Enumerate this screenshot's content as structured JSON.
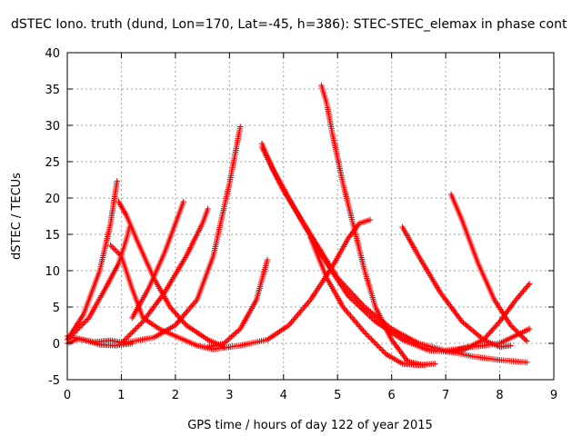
{
  "chart_data": {
    "type": "scatter",
    "title": "dSTEC Iono. truth (dund, Lon=170, Lat=-45, h=386): STEC-STEC_elemax in phase cont",
    "xlabel": "GPS time / hours of day 122 of year 2015",
    "ylabel": "dSTEC  / TECUs",
    "xlim": [
      0,
      9
    ],
    "ylim": [
      -5,
      40
    ],
    "xticks": [
      "0",
      "1",
      "2",
      "3",
      "4",
      "5",
      "6",
      "7",
      "8",
      "9"
    ],
    "yticks": [
      "-5",
      "0",
      "5",
      "10",
      "15",
      "20",
      "25",
      "30",
      "35",
      "40"
    ],
    "grid": true,
    "marker": "plus",
    "color": "#ff0000",
    "series": [
      {
        "x": [
          0.0,
          0.3,
          0.6,
          0.8,
          0.92
        ],
        "y": [
          0.5,
          4.0,
          10.0,
          16.5,
          22.3
        ]
      },
      {
        "x": [
          0.0,
          0.4,
          0.7,
          0.95,
          1.1,
          1.15
        ],
        "y": [
          0.5,
          3.5,
          7.5,
          11.0,
          14.5,
          16.0
        ]
      },
      {
        "x": [
          0.0,
          0.2,
          0.5,
          0.8,
          1.1
        ],
        "y": [
          0.0,
          0.6,
          0.2,
          0.4,
          0.0
        ]
      },
      {
        "x": [
          0.0,
          0.3,
          0.6,
          0.9,
          1.2
        ],
        "y": [
          1.0,
          0.5,
          -0.2,
          -0.3,
          0.0
        ]
      },
      {
        "x": [
          0.8,
          1.0,
          1.2,
          1.4,
          1.7,
          2.0,
          2.4,
          2.7
        ],
        "y": [
          13.5,
          12.0,
          7.5,
          3.5,
          2.0,
          1.0,
          -0.3,
          -0.8
        ]
      },
      {
        "x": [
          0.95,
          1.1,
          1.3,
          1.6,
          1.9,
          2.2,
          2.6,
          2.9
        ],
        "y": [
          19.5,
          17.5,
          14.0,
          9.0,
          5.0,
          2.5,
          0.5,
          -0.5
        ]
      },
      {
        "x": [
          1.2,
          1.5,
          1.8,
          2.0,
          2.15
        ],
        "y": [
          3.5,
          7.5,
          12.5,
          16.5,
          19.5
        ]
      },
      {
        "x": [
          1.0,
          1.4,
          1.8,
          2.2,
          2.5,
          2.6
        ],
        "y": [
          0.0,
          3.0,
          7.0,
          12.0,
          16.5,
          18.5
        ]
      },
      {
        "x": [
          1.0,
          1.6,
          2.0,
          2.4,
          2.7,
          3.0,
          3.2
        ],
        "y": [
          0.0,
          0.8,
          2.5,
          6.0,
          12.0,
          22.0,
          29.8
        ]
      },
      {
        "x": [
          2.6,
          2.9,
          3.2,
          3.5,
          3.7
        ],
        "y": [
          -0.5,
          0.0,
          2.0,
          6.0,
          11.5
        ]
      },
      {
        "x": [
          2.7,
          3.2,
          3.7,
          4.1,
          4.5,
          4.9,
          5.2,
          5.4,
          5.6
        ],
        "y": [
          -0.8,
          -0.3,
          0.5,
          2.5,
          6.0,
          10.5,
          14.5,
          16.5,
          17.0
        ]
      },
      {
        "x": [
          3.6,
          3.8,
          4.1,
          4.4,
          4.8,
          5.2,
          5.7,
          6.2,
          6.7,
          7.1,
          7.4
        ],
        "y": [
          27.5,
          24.0,
          20.0,
          16.0,
          11.0,
          6.5,
          3.0,
          0.5,
          -1.0,
          -1.2,
          -0.5
        ]
      },
      {
        "x": [
          3.6,
          4.0,
          4.5,
          5.0,
          5.5,
          6.0,
          6.5,
          7.0,
          7.5,
          8.0,
          8.5
        ],
        "y": [
          27.0,
          21.0,
          15.0,
          9.0,
          5.0,
          2.0,
          0.0,
          -1.0,
          -1.8,
          -2.3,
          -2.6
        ]
      },
      {
        "x": [
          4.7,
          4.8,
          4.9,
          5.1,
          5.3,
          5.5,
          5.7,
          6.0,
          6.3,
          6.6
        ],
        "y": [
          35.5,
          33.0,
          29.0,
          22.0,
          16.0,
          10.0,
          5.0,
          0.5,
          -2.5,
          -3.0
        ]
      },
      {
        "x": [
          4.5,
          4.8,
          5.1,
          5.5,
          5.9,
          6.2,
          6.5,
          6.8
        ],
        "y": [
          14.5,
          9.0,
          5.0,
          1.5,
          -1.5,
          -2.8,
          -3.0,
          -2.8
        ]
      },
      {
        "x": [
          6.2,
          6.5,
          6.9,
          7.3,
          7.7,
          8.0,
          8.2
        ],
        "y": [
          16.0,
          12.0,
          7.0,
          3.0,
          0.5,
          -0.5,
          -0.3
        ]
      },
      {
        "x": [
          7.1,
          7.3,
          7.6,
          7.9,
          8.2,
          8.5
        ],
        "y": [
          20.5,
          17.0,
          11.0,
          6.0,
          2.5,
          0.3
        ]
      },
      {
        "x": [
          7.3,
          7.7,
          8.0,
          8.3,
          8.55
        ],
        "y": [
          -1.0,
          0.5,
          3.0,
          6.0,
          8.2
        ]
      },
      {
        "x": [
          7.0,
          7.5,
          8.0,
          8.55
        ],
        "y": [
          -1.0,
          -0.5,
          0.0,
          2.0
        ]
      }
    ]
  }
}
